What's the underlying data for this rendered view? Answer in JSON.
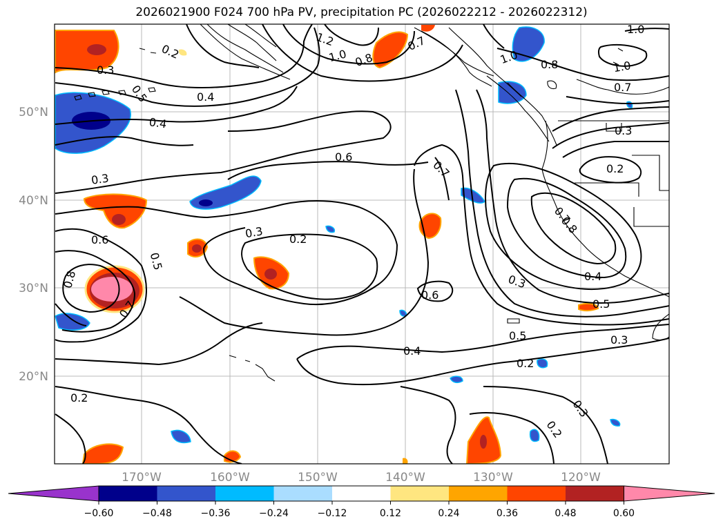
{
  "title": "2026021900 F024 700 hPa PV, precipitation PC (2026022212 - 2026022312)",
  "axes": {
    "lon_labels": [
      "170°W",
      "160°W",
      "150°W",
      "140°W",
      "130°W",
      "120°W"
    ],
    "lat_labels": [
      "50°N",
      "40°N",
      "30°N",
      "20°N"
    ]
  },
  "contour_labels": [
    "1.2",
    "1.0",
    "0.8",
    "0.7",
    "1.0",
    "1.0",
    "0.8",
    "1.0",
    "0.7",
    "0.2",
    "0.3",
    "0.5",
    "0.4",
    "0.4",
    "0.6",
    "0.7",
    "0.3",
    "0.3",
    "0.2",
    "0.3",
    "0.2",
    "0.6",
    "0.5",
    "0.8",
    "0.7",
    "0.7",
    "0.8",
    "0.3",
    "0.4",
    "0.5",
    "0.6",
    "0.5",
    "0.3",
    "0.4",
    "0.2",
    "0.2",
    "0.3",
    "0.2"
  ],
  "colorbar": {
    "ticks": [
      "−0.60",
      "−0.48",
      "−0.36",
      "−0.24",
      "−0.12",
      "0.12",
      "0.24",
      "0.36",
      "0.48",
      "0.60"
    ],
    "colors": [
      "#9933cc",
      "#00008b",
      "#3355cc",
      "#00bbff",
      "#aaddff",
      "#ffffff",
      "#ffe680",
      "#ffa500",
      "#ff4500",
      "#b22222",
      "#ff88aa"
    ]
  }
}
